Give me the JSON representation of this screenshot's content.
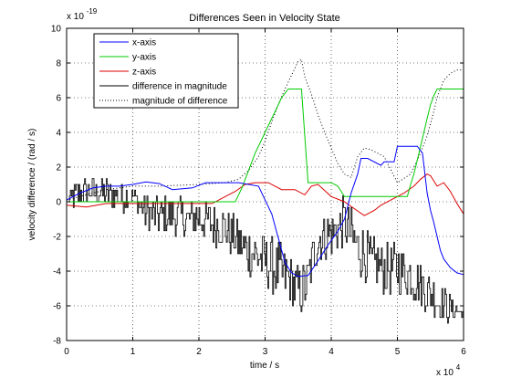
{
  "chart_data": {
    "type": "line",
    "title": "Differences Seen in Velocity State",
    "xlabel": "time / s",
    "ylabel": "velocity difference / (rad / s)",
    "x_multiplier_label": "x 10",
    "x_multiplier_exp": "4",
    "y_multiplier_label": "x 10",
    "y_multiplier_exp": "-19",
    "xlim": [
      0,
      6
    ],
    "ylim": [
      -8,
      10
    ],
    "xticks": [
      "0",
      "1",
      "2",
      "3",
      "4",
      "5",
      "6"
    ],
    "yticks": [
      "-8",
      "-6",
      "-4",
      "-2",
      "0",
      "2",
      "4",
      "6",
      "8",
      "10"
    ],
    "grid": true,
    "legend_position": "top-left",
    "series": [
      {
        "name": "x-axis",
        "color": "#0000ff",
        "style": "solid",
        "x": [
          0,
          0.2,
          0.4,
          0.6,
          0.8,
          1.0,
          1.2,
          1.4,
          1.6,
          1.9,
          2.1,
          2.3,
          2.6,
          2.9,
          3.1,
          3.3,
          3.4,
          3.5,
          3.65,
          3.8,
          3.95,
          4.1,
          4.2,
          4.3,
          4.4,
          4.45,
          4.55,
          4.75,
          4.8,
          4.95,
          5.0,
          5.3,
          5.38,
          5.45,
          5.5,
          5.55,
          5.6,
          5.65,
          5.7,
          5.8,
          5.9,
          6.0
        ],
        "y": [
          0.1,
          0.5,
          0.8,
          0.9,
          0.9,
          1.0,
          1.15,
          1.05,
          0.7,
          0.8,
          1.1,
          1.1,
          1.1,
          0.9,
          -0.7,
          -3.5,
          -4.1,
          -4.3,
          -4.25,
          -3.4,
          -2.5,
          -1.7,
          -1.0,
          0.5,
          1.6,
          2.5,
          2.5,
          2.1,
          2.3,
          2.3,
          3.2,
          3.2,
          2.8,
          0.5,
          -0.5,
          -1.2,
          -2.0,
          -2.8,
          -3.3,
          -3.8,
          -4.1,
          -4.2
        ]
      },
      {
        "name": "y-axis",
        "color": "#00cc00",
        "style": "solid",
        "x": [
          0,
          2.55,
          2.65,
          2.75,
          2.85,
          2.95,
          3.05,
          3.15,
          3.25,
          3.35,
          3.55,
          3.65,
          4.0,
          4.1,
          4.2,
          5.15,
          5.2,
          5.25,
          5.3,
          5.35,
          5.4,
          5.45,
          5.5,
          5.55,
          5.6,
          5.65,
          6.0
        ],
        "y": [
          0,
          0,
          0.8,
          1.8,
          2.8,
          3.6,
          4.4,
          5.2,
          6.0,
          6.5,
          6.5,
          1.1,
          1.1,
          0.9,
          0.3,
          0.3,
          1.0,
          1.6,
          2.4,
          3.2,
          4.0,
          4.8,
          5.6,
          6.1,
          6.5,
          6.5,
          6.5
        ]
      },
      {
        "name": "z-axis",
        "color": "#dd0000",
        "style": "solid",
        "x": [
          0,
          0.3,
          0.6,
          1.0,
          1.4,
          1.8,
          2.2,
          2.55,
          2.7,
          2.85,
          3.05,
          3.25,
          3.45,
          3.6,
          3.7,
          3.8,
          4.0,
          4.2,
          4.35,
          4.5,
          4.65,
          4.75,
          4.95,
          5.1,
          5.25,
          5.35,
          5.45,
          5.5,
          5.6,
          5.7,
          5.8,
          5.9,
          6.0
        ],
        "y": [
          -0.2,
          -0.3,
          -0.1,
          -0.1,
          -0.1,
          -0.1,
          -0.1,
          0.6,
          1.0,
          1.1,
          1.1,
          0.7,
          0.7,
          0.4,
          0.9,
          1.0,
          0.3,
          0.0,
          -0.4,
          -0.8,
          -0.5,
          -0.2,
          0.2,
          0.5,
          0.9,
          1.3,
          1.6,
          1.5,
          0.9,
          1.1,
          0.6,
          -0.1,
          -0.7
        ]
      },
      {
        "name": "difference in magnitude",
        "color": "#000000",
        "style": "noisy-solid",
        "x": [
          0,
          0.1,
          0.2,
          0.4,
          0.6,
          0.8,
          1.0,
          1.2,
          1.4,
          1.6,
          1.8,
          2.0,
          2.2,
          2.4,
          2.6,
          2.8,
          3.0,
          3.2,
          3.4,
          3.5,
          3.6,
          3.7,
          3.8,
          4.0,
          4.2,
          4.4,
          4.6,
          4.8,
          5.0,
          5.2,
          5.4,
          5.6,
          5.8,
          6.0
        ],
        "center": [
          0,
          0.3,
          0.5,
          0.6,
          0.5,
          0.3,
          0.2,
          -0.6,
          -0.8,
          -0.7,
          -1.0,
          -0.9,
          -1.3,
          -1.5,
          -2.4,
          -3.0,
          -3.4,
          -4.0,
          -4.6,
          -5.2,
          -5.0,
          -3.6,
          -2.2,
          -1.8,
          -1.2,
          -2.6,
          -3.5,
          -3.9,
          -3.8,
          -4.2,
          -5.0,
          -5.7,
          -6.2,
          -6.4
        ],
        "spread": [
          0,
          0.9,
          0.9,
          0.9,
          0.9,
          0.9,
          0.6,
          1.1,
          1.2,
          1.2,
          1.2,
          1.2,
          1.3,
          1.3,
          1.4,
          1.5,
          1.6,
          1.7,
          1.5,
          1.6,
          1.5,
          1.4,
          1.5,
          1.4,
          1.6,
          1.6,
          1.5,
          1.5,
          1.6,
          1.5,
          1.3,
          1.2,
          0.8,
          0.3
        ]
      },
      {
        "name": "magnitude of difference",
        "color": "#000000",
        "style": "dotted",
        "x": [
          0,
          0.3,
          0.6,
          1.0,
          1.4,
          2.0,
          2.4,
          2.6,
          2.75,
          2.9,
          3.0,
          3.1,
          3.2,
          3.3,
          3.4,
          3.5,
          3.55,
          3.6,
          3.7,
          3.8,
          3.9,
          4.0,
          4.1,
          4.2,
          4.3,
          4.4,
          4.5,
          4.6,
          4.8,
          5.0,
          5.2,
          5.35,
          5.45,
          5.55,
          5.6,
          5.7,
          5.8,
          5.9,
          6.0
        ],
        "y": [
          0.1,
          0.4,
          0.7,
          0.9,
          0.9,
          1.0,
          1.1,
          1.3,
          1.8,
          2.6,
          3.5,
          4.6,
          5.6,
          6.5,
          7.3,
          8.1,
          8.2,
          7.2,
          6.2,
          5.0,
          4.0,
          3.1,
          2.2,
          1.6,
          1.4,
          2.6,
          3.1,
          3.0,
          2.6,
          1.1,
          1.6,
          2.8,
          3.8,
          5.2,
          6.0,
          7.0,
          7.4,
          7.6,
          7.6
        ]
      }
    ]
  }
}
